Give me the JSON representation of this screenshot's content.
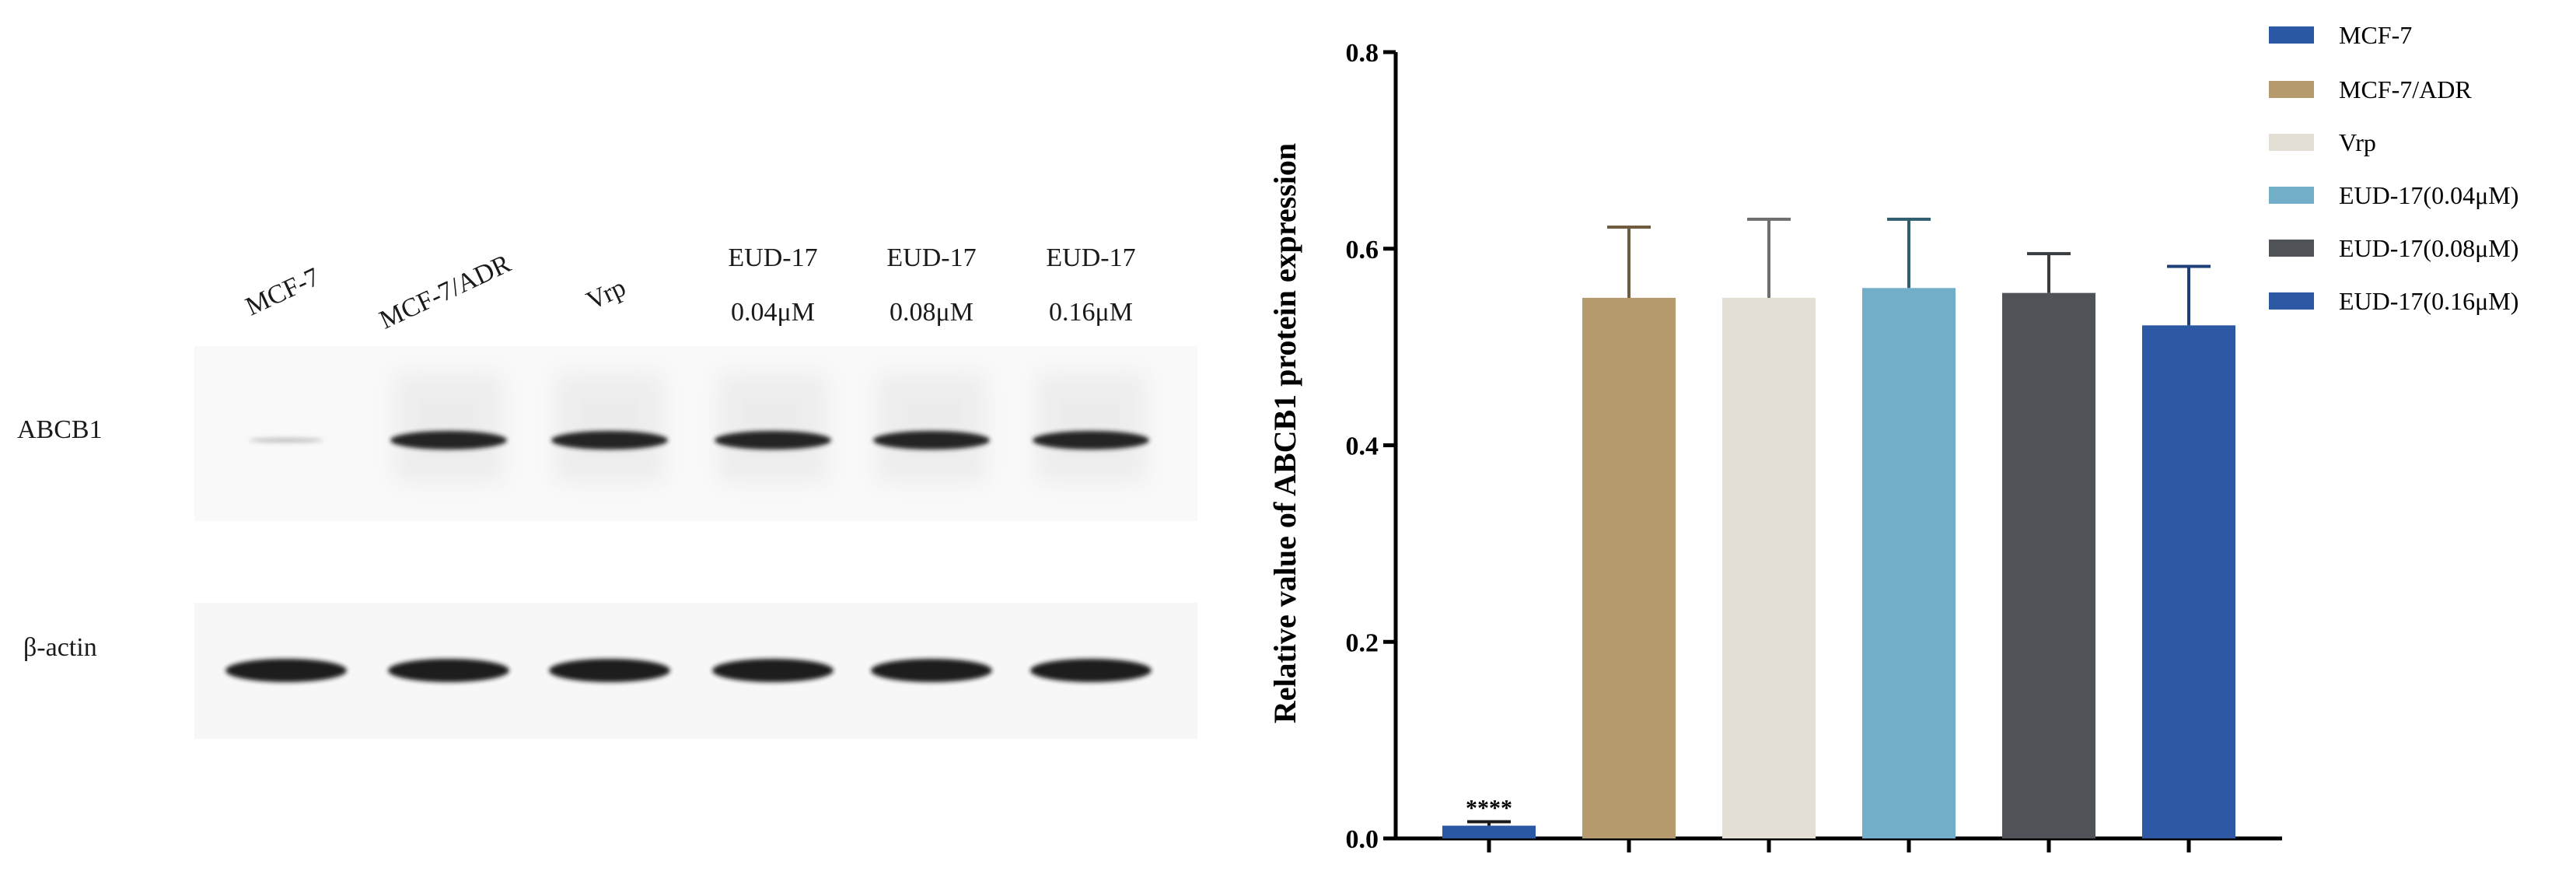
{
  "western_blot": {
    "lanes": [
      {
        "label": "MCF-7",
        "sublabel": "",
        "rotated": true,
        "abcb1_intensity": 0.05,
        "actin_intensity": 1.0
      },
      {
        "label": "MCF-7/ADR",
        "sublabel": "",
        "rotated": true,
        "abcb1_intensity": 0.95,
        "actin_intensity": 1.0
      },
      {
        "label": "Vrp",
        "sublabel": "",
        "rotated": true,
        "abcb1_intensity": 0.95,
        "actin_intensity": 1.0
      },
      {
        "label": "EUD-17",
        "sublabel": "0.04μM",
        "rotated": false,
        "abcb1_intensity": 0.95,
        "actin_intensity": 1.0
      },
      {
        "label": "EUD-17",
        "sublabel": "0.08μM",
        "rotated": false,
        "abcb1_intensity": 0.95,
        "actin_intensity": 1.0
      },
      {
        "label": "EUD-17",
        "sublabel": "0.16μM",
        "rotated": false,
        "abcb1_intensity": 0.95,
        "actin_intensity": 1.0
      }
    ],
    "row_labels": [
      "ABCB1",
      "β-actin"
    ]
  },
  "chart_data": {
    "type": "bar",
    "title": "",
    "xlabel": "",
    "ylabel": "Relative value of ABCB1 protein expression",
    "ylim": [
      0,
      0.8
    ],
    "yticks": [
      0.0,
      0.2,
      0.4,
      0.6,
      0.8
    ],
    "ytick_labels": [
      "0.0",
      "0.2",
      "0.4",
      "0.6",
      "0.8"
    ],
    "grid": false,
    "legend_position": "top-right",
    "series": [
      {
        "name": "MCF-7",
        "value": 0.013,
        "error": 0.004,
        "color": "#2b58a5",
        "error_color": "#1a1a1a",
        "annotation": "****"
      },
      {
        "name": "MCF-7/ADR",
        "value": 0.55,
        "error": 0.072,
        "color": "#b59a6e",
        "error_color": "#6f5b40",
        "annotation": ""
      },
      {
        "name": "Vrp",
        "value": 0.55,
        "error": 0.08,
        "color": "#e3dfd4",
        "error_color": "#6e6e6e",
        "annotation": ""
      },
      {
        "name": "EUD-17(0.04μM)",
        "value": 0.56,
        "error": 0.07,
        "color": "#72aec8",
        "error_color": "#2f5f6e",
        "annotation": ""
      },
      {
        "name": "EUD-17(0.08μM)",
        "value": 0.555,
        "error": 0.04,
        "color": "#4f5357",
        "error_color": "#3a3d40",
        "annotation": ""
      },
      {
        "name": "EUD-17(0.16μM)",
        "value": 0.522,
        "error": 0.06,
        "color": "#2d58a4",
        "error_color": "#1e3e78",
        "annotation": ""
      }
    ]
  }
}
